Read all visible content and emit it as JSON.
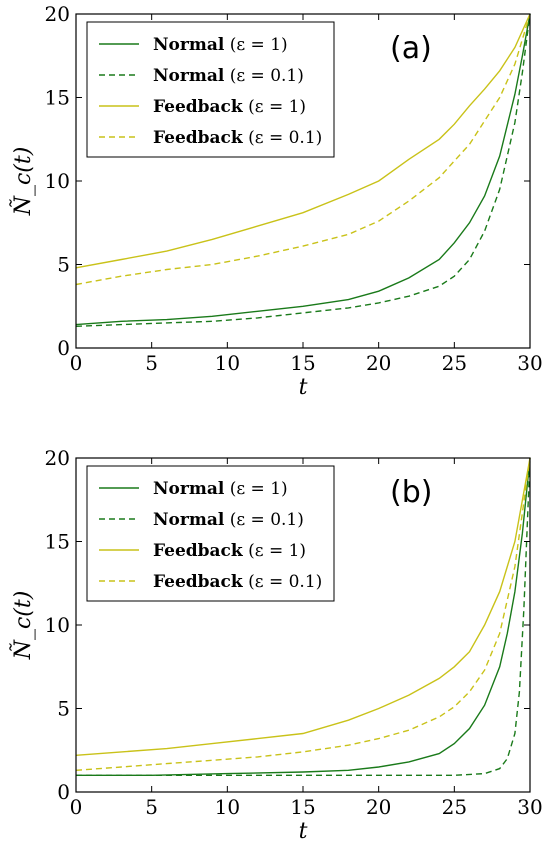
{
  "chart_data": [
    {
      "type": "line",
      "panel_label": "(a)",
      "xlabel": "t",
      "ylabel": "Ñ_c(t)",
      "xlim": [
        0,
        30
      ],
      "ylim": [
        0,
        20
      ],
      "xticks": [
        "0",
        "5",
        "10",
        "15",
        "20",
        "25",
        "30"
      ],
      "yticks": [
        "0",
        "5",
        "10",
        "15",
        "20"
      ],
      "legend_position": "upper-left",
      "series": [
        {
          "name": "Normal",
          "param": "(ε = 1)",
          "color": "#1a7a1a",
          "dash": false,
          "x": [
            0,
            3,
            6,
            9,
            12,
            15,
            18,
            20,
            22,
            24,
            25,
            26,
            27,
            28,
            29,
            29.5,
            30
          ],
          "y": [
            1.4,
            1.6,
            1.7,
            1.9,
            2.2,
            2.5,
            2.9,
            3.4,
            4.2,
            5.3,
            6.3,
            7.5,
            9.1,
            11.5,
            15.2,
            17.5,
            20
          ]
        },
        {
          "name": "Normal",
          "param": "(ε = 0.1)",
          "color": "#1a7a1a",
          "dash": true,
          "x": [
            0,
            3,
            6,
            9,
            12,
            15,
            18,
            20,
            22,
            24,
            25,
            26,
            27,
            28,
            29,
            29.5,
            30
          ],
          "y": [
            1.3,
            1.4,
            1.5,
            1.6,
            1.8,
            2.1,
            2.4,
            2.7,
            3.1,
            3.7,
            4.3,
            5.3,
            7.0,
            9.5,
            13.5,
            16.5,
            20
          ]
        },
        {
          "name": "Feedback",
          "param": "(ε = 1)",
          "color": "#c9c219",
          "dash": false,
          "x": [
            0,
            3,
            6,
            9,
            12,
            15,
            18,
            20,
            22,
            24,
            25,
            26,
            27,
            28,
            29,
            30
          ],
          "y": [
            4.8,
            5.3,
            5.8,
            6.5,
            7.3,
            8.1,
            9.2,
            10.0,
            11.3,
            12.5,
            13.4,
            14.5,
            15.5,
            16.6,
            18.0,
            20
          ]
        },
        {
          "name": "Feedback",
          "param": "(ε = 0.1)",
          "color": "#c9c219",
          "dash": true,
          "x": [
            0,
            3,
            6,
            9,
            12,
            15,
            18,
            20,
            22,
            24,
            25,
            26,
            27,
            28,
            29,
            30
          ],
          "y": [
            3.8,
            4.3,
            4.7,
            5.0,
            5.5,
            6.1,
            6.8,
            7.6,
            8.8,
            10.2,
            11.2,
            12.2,
            13.6,
            15.0,
            17.0,
            20
          ]
        }
      ]
    },
    {
      "type": "line",
      "panel_label": "(b)",
      "xlabel": "t",
      "ylabel": "Ñ_c(t)",
      "xlim": [
        0,
        30
      ],
      "ylim": [
        0,
        20
      ],
      "xticks": [
        "0",
        "5",
        "10",
        "15",
        "20",
        "25",
        "30"
      ],
      "yticks": [
        "0",
        "5",
        "10",
        "15",
        "20"
      ],
      "legend_position": "upper-left",
      "series": [
        {
          "name": "Normal",
          "param": "(ε = 1)",
          "color": "#1a7a1a",
          "dash": false,
          "x": [
            0,
            5,
            10,
            15,
            18,
            20,
            22,
            24,
            25,
            26,
            27,
            28,
            28.5,
            29,
            29.5,
            30
          ],
          "y": [
            1.0,
            1.0,
            1.1,
            1.2,
            1.3,
            1.5,
            1.8,
            2.3,
            2.9,
            3.8,
            5.2,
            7.5,
            9.5,
            12.0,
            15.5,
            20
          ]
        },
        {
          "name": "Normal",
          "param": "(ε = 0.1)",
          "color": "#1a7a1a",
          "dash": true,
          "x": [
            0,
            5,
            10,
            15,
            20,
            25,
            27,
            28,
            28.5,
            29,
            29.3,
            29.6,
            30
          ],
          "y": [
            1.0,
            1.0,
            1.0,
            1.0,
            1.0,
            1.0,
            1.1,
            1.4,
            2.0,
            3.5,
            6.0,
            11.0,
            20
          ]
        },
        {
          "name": "Feedback",
          "param": "(ε = 1)",
          "color": "#c9c219",
          "dash": false,
          "x": [
            0,
            3,
            6,
            9,
            12,
            15,
            18,
            20,
            22,
            24,
            25,
            26,
            27,
            28,
            29,
            30
          ],
          "y": [
            2.2,
            2.4,
            2.6,
            2.9,
            3.2,
            3.5,
            4.3,
            5.0,
            5.8,
            6.8,
            7.5,
            8.4,
            10.0,
            12.0,
            15.0,
            20
          ]
        },
        {
          "name": "Feedback",
          "param": "(ε = 0.1)",
          "color": "#c9c219",
          "dash": true,
          "x": [
            0,
            3,
            6,
            9,
            12,
            15,
            18,
            20,
            22,
            24,
            25,
            26,
            27,
            28,
            29,
            30
          ],
          "y": [
            1.3,
            1.5,
            1.7,
            1.9,
            2.1,
            2.4,
            2.8,
            3.2,
            3.7,
            4.5,
            5.1,
            6.0,
            7.3,
            9.5,
            13.5,
            20
          ]
        }
      ]
    }
  ]
}
